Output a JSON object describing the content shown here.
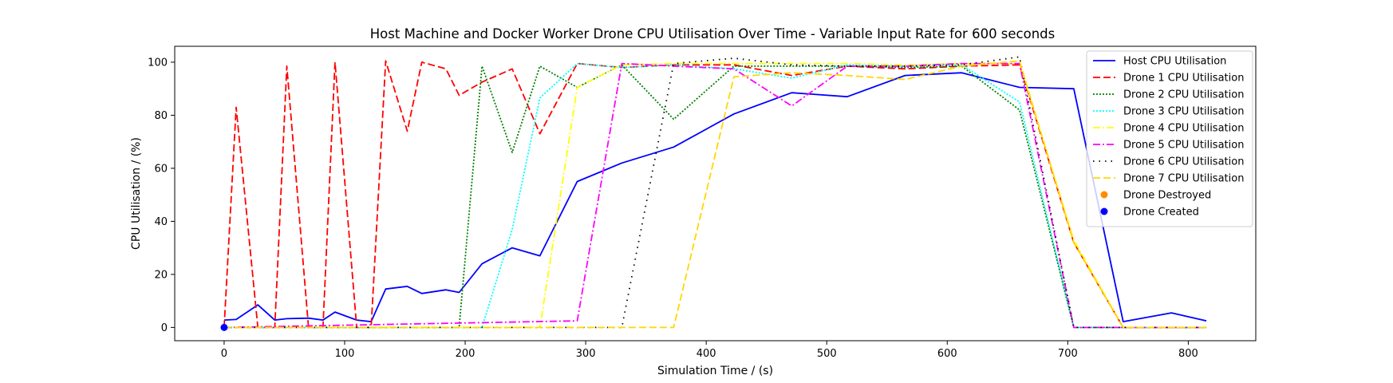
{
  "chart_data": {
    "type": "line",
    "title": "Host Machine and Docker Worker Drone CPU Utilisation Over Time - Variable Input Rate for 600 seconds",
    "xlabel": "Simulation Time / (s)",
    "ylabel": "CPU Utilisation / (%)",
    "xlim": [
      -41,
      856
    ],
    "ylim": [
      -5,
      106
    ],
    "xticks": [
      0,
      100,
      200,
      300,
      400,
      500,
      600,
      700,
      800
    ],
    "yticks": [
      0,
      20,
      40,
      60,
      80,
      100
    ],
    "grid": false,
    "legend_position": "top-right",
    "series": [
      {
        "name": "Host CPU Utilisation",
        "color": "#0000ff",
        "dash": "solid",
        "points": [
          [
            0,
            2.8
          ],
          [
            10,
            3
          ],
          [
            28,
            8.5
          ],
          [
            42,
            2.8
          ],
          [
            52,
            3.3
          ],
          [
            70,
            3.5
          ],
          [
            82,
            2.8
          ],
          [
            92,
            5.8
          ],
          [
            110,
            2.8
          ],
          [
            122,
            2.2
          ],
          [
            134,
            14.5
          ],
          [
            152,
            15.5
          ],
          [
            164,
            12.8
          ],
          [
            184,
            14.2
          ],
          [
            195,
            13.2
          ],
          [
            214,
            24
          ],
          [
            239,
            30
          ],
          [
            262,
            27
          ],
          [
            293,
            55
          ],
          [
            330,
            62
          ],
          [
            373,
            68
          ],
          [
            423,
            80.5
          ],
          [
            471,
            88.5
          ],
          [
            517,
            87
          ],
          [
            565,
            95
          ],
          [
            612,
            96
          ],
          [
            660,
            90.5
          ],
          [
            705,
            90
          ],
          [
            746,
            2.2
          ],
          [
            786,
            5.5
          ],
          [
            815,
            2.5
          ]
        ]
      },
      {
        "name": "Drone 1 CPU Utilisation",
        "color": "#ff0000",
        "dash": "dashed",
        "points": [
          [
            0,
            0
          ],
          [
            10,
            83
          ],
          [
            28,
            0
          ],
          [
            42,
            0
          ],
          [
            52,
            98.5
          ],
          [
            70,
            0
          ],
          [
            82,
            0
          ],
          [
            92,
            100
          ],
          [
            110,
            0
          ],
          [
            122,
            0
          ],
          [
            134,
            100.5
          ],
          [
            152,
            74
          ],
          [
            164,
            100
          ],
          [
            184,
            97.5
          ],
          [
            195,
            87.5
          ],
          [
            214,
            92.5
          ],
          [
            239,
            97.5
          ],
          [
            262,
            73
          ],
          [
            293,
            99.5
          ],
          [
            330,
            98
          ],
          [
            373,
            99
          ],
          [
            423,
            99
          ],
          [
            471,
            95
          ],
          [
            517,
            98.5
          ],
          [
            565,
            97.5
          ],
          [
            612,
            98.5
          ],
          [
            660,
            99
          ],
          [
            705,
            32
          ],
          [
            746,
            0
          ],
          [
            786,
            0
          ],
          [
            815,
            0
          ]
        ]
      },
      {
        "name": "Drone 2 CPU Utilisation",
        "color": "#008000",
        "dash": "dotted",
        "points": [
          [
            0,
            0
          ],
          [
            195,
            0
          ],
          [
            214,
            98.5
          ],
          [
            239,
            66
          ],
          [
            262,
            98.5
          ],
          [
            293,
            90.5
          ],
          [
            330,
            99
          ],
          [
            373,
            78.5
          ],
          [
            423,
            98.5
          ],
          [
            471,
            98.5
          ],
          [
            517,
            98.5
          ],
          [
            565,
            98
          ],
          [
            612,
            98.5
          ],
          [
            660,
            82
          ],
          [
            705,
            0
          ],
          [
            746,
            0
          ],
          [
            786,
            0
          ],
          [
            815,
            0
          ]
        ]
      },
      {
        "name": "Drone 3 CPU Utilisation",
        "color": "#00ffff",
        "dash": "dotted",
        "points": [
          [
            0,
            0
          ],
          [
            214,
            0
          ],
          [
            239,
            37
          ],
          [
            262,
            86.5
          ],
          [
            293,
            99.5
          ],
          [
            330,
            98
          ],
          [
            373,
            99
          ],
          [
            423,
            97.5
          ],
          [
            471,
            94
          ],
          [
            517,
            99
          ],
          [
            565,
            98.5
          ],
          [
            612,
            99
          ],
          [
            660,
            85
          ],
          [
            705,
            0
          ],
          [
            746,
            0
          ],
          [
            786,
            0
          ],
          [
            815,
            0
          ]
        ]
      },
      {
        "name": "Drone 4 CPU Utilisation",
        "color": "#ffff00",
        "dash": "dashdot",
        "points": [
          [
            0,
            0
          ],
          [
            262,
            0
          ],
          [
            293,
            90.5
          ],
          [
            330,
            99
          ],
          [
            373,
            99.5
          ],
          [
            423,
            99.5
          ],
          [
            471,
            99.5
          ],
          [
            517,
            99.5
          ],
          [
            565,
            99
          ],
          [
            612,
            99.5
          ],
          [
            660,
            99.5
          ],
          [
            705,
            33
          ],
          [
            746,
            0
          ],
          [
            786,
            0
          ],
          [
            815,
            0
          ]
        ]
      },
      {
        "name": "Drone 5 CPU Utilisation",
        "color": "#ff00ff",
        "dash": "dashdot",
        "points": [
          [
            0,
            0
          ],
          [
            293,
            2.5
          ],
          [
            330,
            99.5
          ],
          [
            373,
            98.5
          ],
          [
            423,
            97.5
          ],
          [
            471,
            83.5
          ],
          [
            517,
            98.5
          ],
          [
            565,
            98.5
          ],
          [
            612,
            99.5
          ],
          [
            660,
            99.5
          ],
          [
            705,
            0
          ],
          [
            746,
            0
          ],
          [
            786,
            0
          ],
          [
            815,
            0
          ]
        ]
      },
      {
        "name": "Drone 6 CPU Utilisation",
        "color": "#000000",
        "dash": "loosedot",
        "points": [
          [
            0,
            0
          ],
          [
            330,
            0
          ],
          [
            373,
            99.5
          ],
          [
            423,
            101.5
          ],
          [
            471,
            99
          ],
          [
            517,
            98.5
          ],
          [
            565,
            98.5
          ],
          [
            612,
            99
          ],
          [
            660,
            102
          ],
          [
            705,
            0
          ],
          [
            746,
            0
          ],
          [
            786,
            0
          ],
          [
            815,
            0
          ]
        ]
      },
      {
        "name": "Drone 7 CPU Utilisation",
        "color": "#ffd700",
        "dash": "dashed",
        "points": [
          [
            0,
            0
          ],
          [
            373,
            0
          ],
          [
            423,
            94.5
          ],
          [
            471,
            96
          ],
          [
            517,
            95
          ],
          [
            565,
            93.5
          ],
          [
            612,
            98.5
          ],
          [
            660,
            100.5
          ],
          [
            705,
            32
          ],
          [
            746,
            0
          ],
          [
            786,
            0
          ],
          [
            815,
            0
          ]
        ]
      }
    ],
    "markers": [
      {
        "name": "Drone Destroyed",
        "color": "#ff8c00",
        "points": []
      },
      {
        "name": "Drone Created",
        "color": "#0000ff",
        "points": [
          [
            0,
            0
          ]
        ]
      }
    ]
  }
}
